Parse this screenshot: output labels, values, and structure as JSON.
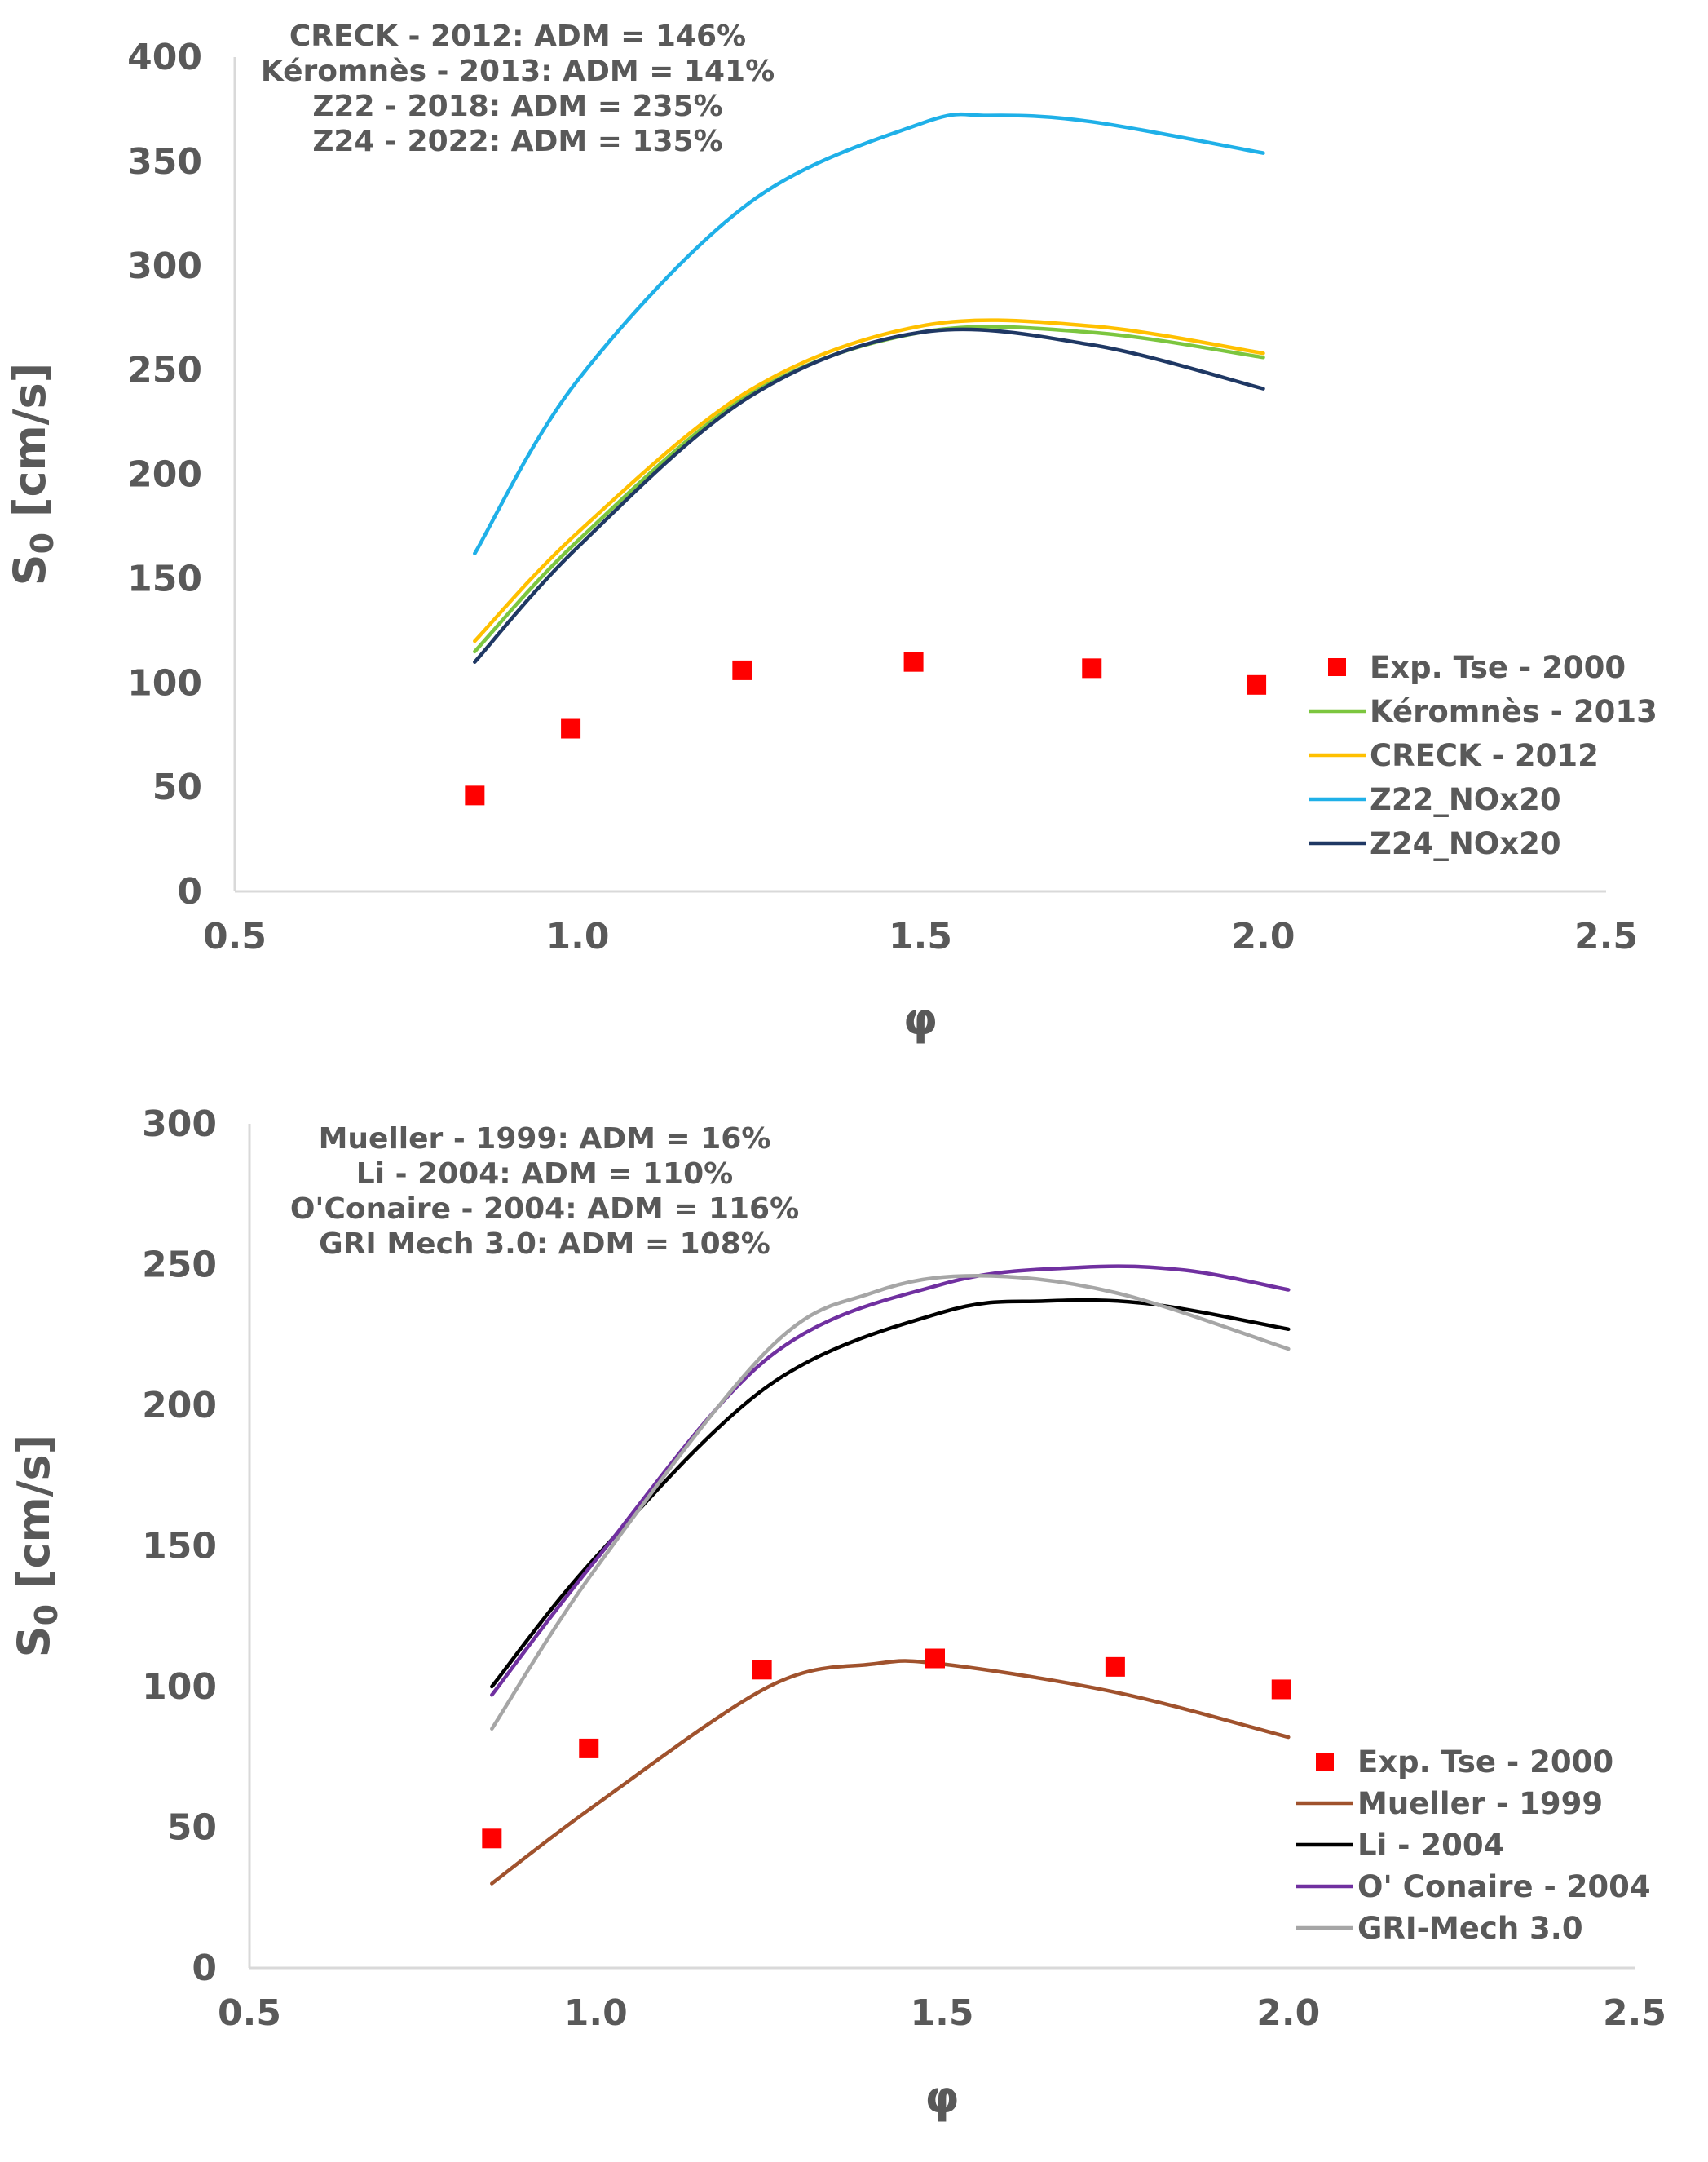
{
  "chart_data": [
    {
      "type": "line",
      "xlabel": "φ",
      "ylabel": "S",
      "ylabel_subscript": "0",
      "ylabel_units": " [cm/s]",
      "xlim": [
        0.5,
        2.5
      ],
      "ylim": [
        0,
        400
      ],
      "xticks": [
        "0.5",
        "1.0",
        "1.5",
        "2.0",
        "2.5"
      ],
      "yticks": [
        "0",
        "50",
        "100",
        "150",
        "200",
        "250",
        "300",
        "350",
        "400"
      ],
      "annotations": [
        "CRECK - 2012: ADM = 146%",
        "Kéromnès - 2013: ADM = 141%",
        "Z22 - 2018: ADM = 235%",
        "Z24 - 2022: ADM = 135%"
      ],
      "legend": "right",
      "scatter": {
        "name": "Exp. Tse - 2000",
        "color": "#ff0000",
        "x": [
          0.85,
          0.99,
          1.24,
          1.49,
          1.75,
          1.99
        ],
        "y": [
          46,
          78,
          106,
          110,
          107,
          99
        ]
      },
      "series": [
        {
          "name": "Kéromnès - 2013",
          "color": "#7cc63f",
          "x": [
            0.85,
            1.0,
            1.25,
            1.5,
            1.75,
            2.0
          ],
          "y": [
            115,
            168,
            238,
            268,
            268,
            256
          ]
        },
        {
          "name": "CRECK - 2012",
          "color": "#ffc000",
          "x": [
            0.85,
            1.0,
            1.25,
            1.5,
            1.75,
            2.0
          ],
          "y": [
            120,
            172,
            240,
            271,
            271,
            258
          ]
        },
        {
          "name": "Z22_NOx20",
          "color": "#1fb0e8",
          "x": [
            0.85,
            1.0,
            1.25,
            1.5,
            1.6,
            1.75,
            2.0
          ],
          "y": [
            162,
            245,
            330,
            368,
            372,
            369,
            354
          ]
        },
        {
          "name": "Z24_NOx20",
          "color": "#1f3864",
          "x": [
            0.85,
            1.0,
            1.25,
            1.5,
            1.75,
            2.0
          ],
          "y": [
            110,
            165,
            237,
            268,
            262,
            241
          ]
        }
      ]
    },
    {
      "type": "line",
      "xlabel": "φ",
      "ylabel": "S",
      "ylabel_subscript": "0",
      "ylabel_units": " [cm/s]",
      "xlim": [
        0.5,
        2.5
      ],
      "ylim": [
        0,
        300
      ],
      "xticks": [
        "0.5",
        "1.0",
        "1.5",
        "2.0",
        "2.5"
      ],
      "yticks": [
        "0",
        "50",
        "100",
        "150",
        "200",
        "250",
        "300"
      ],
      "annotations": [
        "Mueller - 1999: ADM = 16%",
        "Li - 2004: ADM = 110%",
        "O'Conaire - 2004: ADM = 116%",
        "GRI Mech 3.0: ADM = 108%"
      ],
      "legend": "right",
      "scatter": {
        "name": "Exp. Tse - 2000",
        "color": "#ff0000",
        "x": [
          0.85,
          0.99,
          1.24,
          1.49,
          1.75,
          1.99
        ],
        "y": [
          46,
          78,
          106,
          110,
          107,
          99
        ]
      },
      "series": [
        {
          "name": "Mueller - 1999",
          "color": "#a0522d",
          "x": [
            0.85,
            1.0,
            1.25,
            1.4,
            1.5,
            1.75,
            2.0
          ],
          "y": [
            30,
            58,
            100,
            108,
            108,
            98,
            82
          ]
        },
        {
          "name": "Li - 2004",
          "color": "#000000",
          "x": [
            0.85,
            1.0,
            1.25,
            1.5,
            1.65,
            1.8,
            2.0
          ],
          "y": [
            100,
            146,
            207,
            233,
            237,
            236,
            227
          ]
        },
        {
          "name": "O' Conaire - 2004",
          "color": "#7030a0",
          "x": [
            0.85,
            1.0,
            1.25,
            1.5,
            1.7,
            1.85,
            2.0
          ],
          "y": [
            97,
            145,
            217,
            243,
            249,
            248,
            241
          ]
        },
        {
          "name": "GRI-Mech 3.0",
          "color": "#a6a6a6",
          "x": [
            0.85,
            1.0,
            1.25,
            1.4,
            1.55,
            1.75,
            2.0
          ],
          "y": [
            85,
            142,
            220,
            240,
            246,
            240,
            220
          ]
        }
      ]
    }
  ]
}
